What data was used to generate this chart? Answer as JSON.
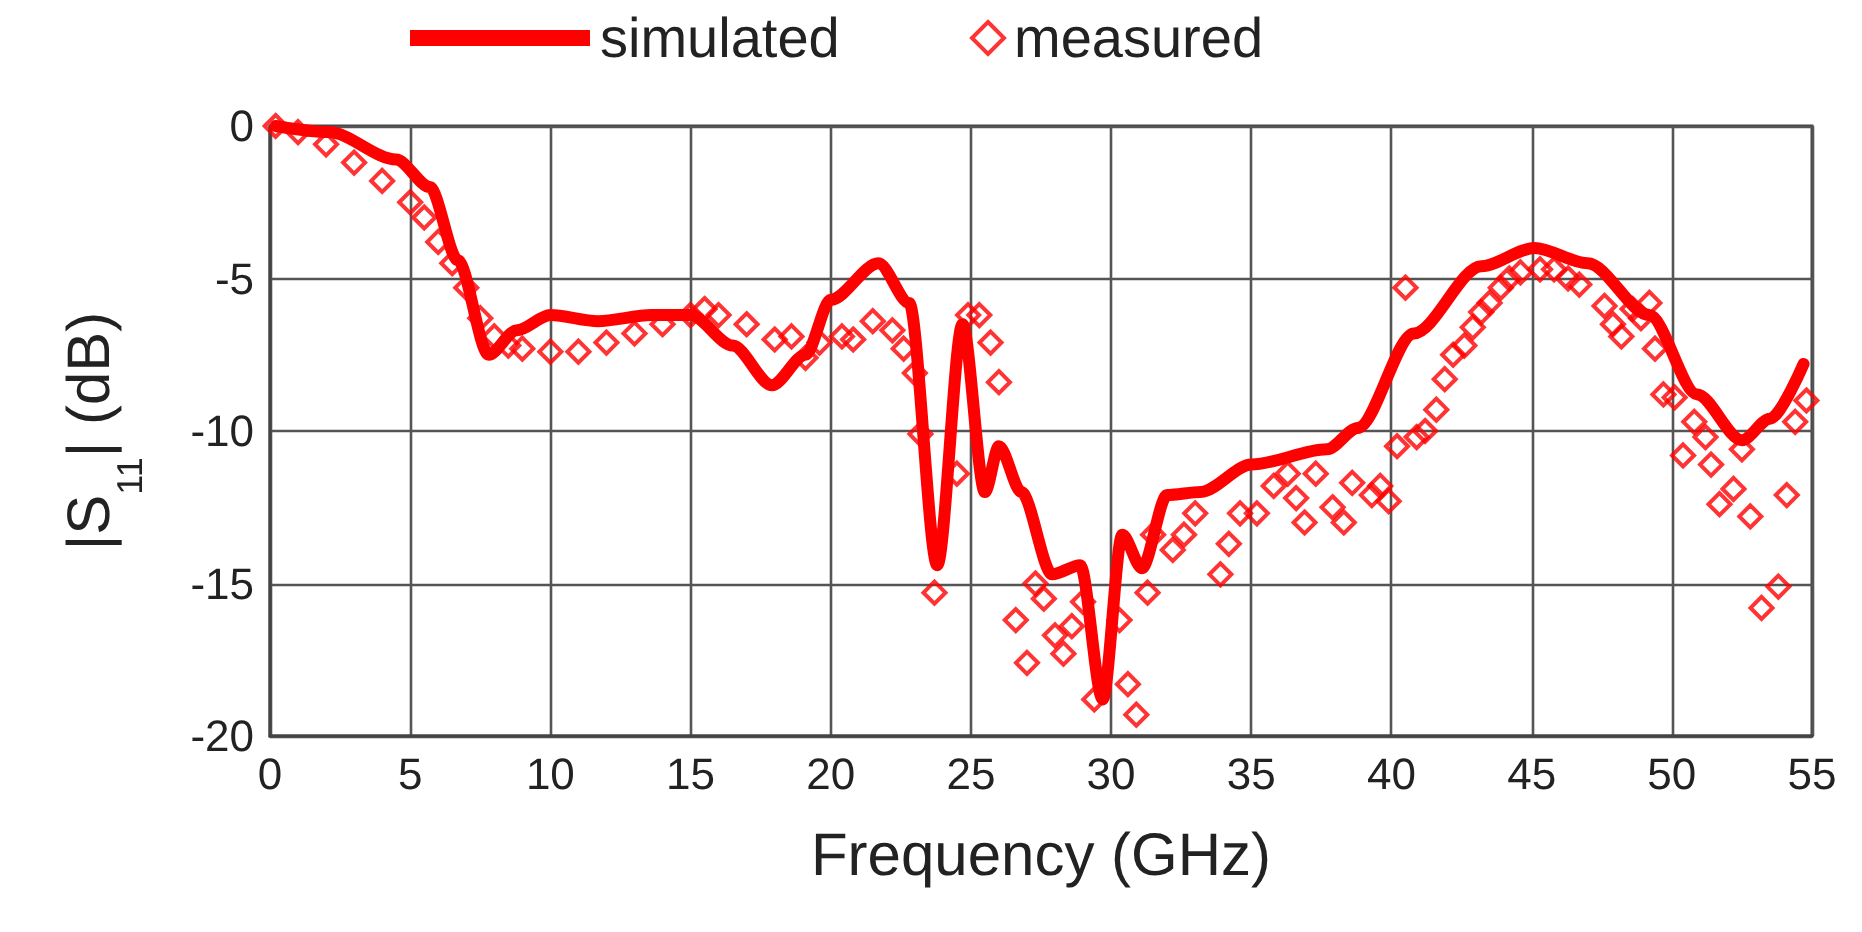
{
  "chart_data": {
    "type": "line",
    "xlabel": "Frequency (GHz)",
    "ylabel": "|S$_{11}$| (dB)",
    "xlim": [
      0,
      55
    ],
    "xticks": [
      0,
      5,
      10,
      15,
      20,
      25,
      30,
      35,
      40,
      45,
      50,
      55
    ],
    "ylim": [
      -20,
      0
    ],
    "yticks": [
      -20,
      -15,
      -10,
      -5,
      0
    ],
    "grid": true,
    "legend": "top",
    "series": [
      {
        "name": "simulated",
        "color": "#ff0000",
        "marker": "none",
        "line_style": "solid",
        "x": [
          0.2,
          2.1,
          4.5,
          5.7,
          6.7,
          7.8,
          8.8,
          10,
          11.7,
          13.6,
          15,
          16.5,
          17.9,
          19.1,
          20,
          21.7,
          22.8,
          23.8,
          24.7,
          25.5,
          26,
          26.8,
          27.9,
          28.9,
          29.7,
          30.4,
          31.1,
          32,
          33.2,
          35,
          37.7,
          38.8,
          40.8,
          43.2,
          45.1,
          47,
          49.2,
          50.9,
          52.5,
          53.5,
          54.7
        ],
        "values": [
          0,
          -0.2,
          -1.1,
          -2,
          -4.4,
          -7.5,
          -6.7,
          -6.2,
          -6.4,
          -6.2,
          -6.2,
          -7.2,
          -8.5,
          -7.5,
          -5.7,
          -4.5,
          -5.8,
          -14.4,
          -6.5,
          -12,
          -10.5,
          -12,
          -14.7,
          -14.4,
          -18.8,
          -13.4,
          -14.5,
          -12.1,
          -12,
          -11.1,
          -10.6,
          -9.9,
          -6.8,
          -4.6,
          -4,
          -4.5,
          -6.2,
          -8.8,
          -10.3,
          -9.6,
          -7.8
        ]
      },
      {
        "name": "measured",
        "type": "scatter",
        "color": "#ff0000",
        "marker": "diamond",
        "x": [
          0.2,
          1,
          2,
          3,
          4,
          5,
          5.5,
          6,
          6.5,
          7,
          7.5,
          8,
          8.5,
          9,
          10,
          11,
          12,
          13,
          14,
          15,
          15.5,
          16,
          17,
          18,
          18.6,
          19.1,
          19.6,
          20.4,
          20.8,
          21.5,
          22.2,
          22.6,
          23,
          23.2,
          23.7,
          24.5,
          24.9,
          25.3,
          25.7,
          26,
          26.6,
          27,
          27.3,
          27.6,
          28,
          28.3,
          28.6,
          29,
          29.4,
          30.3,
          30.6,
          30.9,
          31.3,
          31.5,
          32.2,
          32.6,
          33,
          33.9,
          34.2,
          34.6,
          35.2,
          35.8,
          36.3,
          36.6,
          36.9,
          37.3,
          37.9,
          38.3,
          38.6,
          39.3,
          39.6,
          39.9,
          40.2,
          40.5,
          40.9,
          41.2,
          41.6,
          41.9,
          42.2,
          42.6,
          42.9,
          43.2,
          43.5,
          43.9,
          44.2,
          44.6,
          45.3,
          45.8,
          46.3,
          46.7,
          47.6,
          47.9,
          48.2,
          48.6,
          48.9,
          49.2,
          49.4,
          49.7,
          50.1,
          50.4,
          50.8,
          51.2,
          51.4,
          51.7,
          52.2,
          52.5,
          52.8,
          53.2,
          53.8,
          54.1,
          54.4,
          54.8
        ],
        "values": [
          0,
          -0.2,
          -0.6,
          -1.2,
          -1.8,
          -2.5,
          -3,
          -3.8,
          -4.5,
          -5.3,
          -6.3,
          -6.9,
          -7.2,
          -7.3,
          -7.4,
          -7.4,
          -7.1,
          -6.8,
          -6.5,
          -6.2,
          -6,
          -6.2,
          -6.5,
          -7,
          -6.9,
          -7.6,
          -7.1,
          -6.9,
          -7,
          -6.4,
          -6.7,
          -7.3,
          -8.1,
          -10.1,
          -15.3,
          -11.4,
          -6.2,
          -6.2,
          -7.1,
          -8.4,
          -16.2,
          -17.6,
          -15,
          -15.5,
          -16.7,
          -17.3,
          -16.4,
          -15.6,
          -18.8,
          -16.2,
          -18.3,
          -19.3,
          -15.3,
          -13.4,
          -13.9,
          -13.4,
          -12.7,
          -14.7,
          -13.7,
          -12.7,
          -12.7,
          -11.8,
          -11.4,
          -12.2,
          -13,
          -11.4,
          -12.5,
          -13,
          -11.7,
          -12.1,
          -11.8,
          -12.3,
          -10.5,
          -5.3,
          -10.2,
          -10,
          -9.3,
          -8.3,
          -7.5,
          -7.2,
          -6.6,
          -6.1,
          -5.8,
          -5.3,
          -5,
          -4.8,
          -4.7,
          -4.7,
          -5,
          -5.2,
          -5.9,
          -6.5,
          -6.9,
          -6,
          -6.3,
          -5.8,
          -7.3,
          -8.8,
          -8.9,
          -10.8,
          -9.7,
          -10.2,
          -11.1,
          -12.4,
          -11.9,
          -10.6,
          -12.8,
          -15.8,
          -15.1,
          -12.1,
          -9.7,
          -9
        ]
      }
    ]
  }
}
